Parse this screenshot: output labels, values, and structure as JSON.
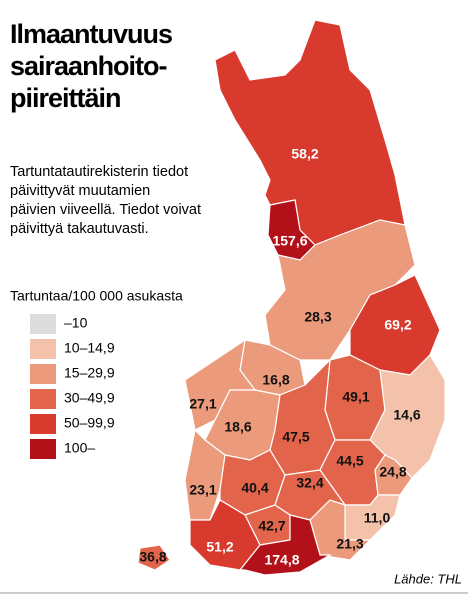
{
  "header": {
    "title_lines": [
      "Ilmaantuvuus",
      "sairaanhoito-",
      "piireittäin"
    ],
    "description_lines": [
      "Tartuntatautirekisterin tiedot",
      "päivittyvät muutamien",
      "päivien viiveellä. Tiedot voivat",
      "päivittyä takautuvasti."
    ]
  },
  "legend": {
    "title": "Tartuntaa/100 000 asukasta",
    "items": [
      {
        "label": "–10",
        "from": null,
        "color": "#dcdcdc"
      },
      {
        "label": "10–14,9",
        "from": 10,
        "color": "#f4c2aa"
      },
      {
        "label": "15–29,9",
        "from": 15,
        "color": "#eb9a7c"
      },
      {
        "label": "30–49,9",
        "from": 30,
        "color": "#e2654b"
      },
      {
        "label": "50–99,9",
        "from": 50,
        "color": "#d83a2d"
      },
      {
        "label": "100–",
        "from": 100,
        "color": "#b3111a"
      }
    ]
  },
  "regions": [
    {
      "value": 58.2,
      "label": "58,2"
    },
    {
      "value": 157.6,
      "label": "157,6"
    },
    {
      "value": 28.3,
      "label": "28,3"
    },
    {
      "value": 69.2,
      "label": "69,2"
    },
    {
      "value": 16.8,
      "label": "16,8"
    },
    {
      "value": 27.1,
      "label": "27,1"
    },
    {
      "value": 18.6,
      "label": "18,6"
    },
    {
      "value": 49.1,
      "label": "49,1"
    },
    {
      "value": 47.5,
      "label": "47,5"
    },
    {
      "value": 14.6,
      "label": "14,6"
    },
    {
      "value": 23.1,
      "label": "23,1"
    },
    {
      "value": 40.4,
      "label": "40,4"
    },
    {
      "value": 44.5,
      "label": "44,5"
    },
    {
      "value": 24.8,
      "label": "24,8"
    },
    {
      "value": 32.4,
      "label": "32,4"
    },
    {
      "value": 42.7,
      "label": "42,7"
    },
    {
      "value": 11.0,
      "label": "11,0"
    },
    {
      "value": 21.3,
      "label": "21,3"
    },
    {
      "value": 51.2,
      "label": "51,2"
    },
    {
      "value": 174.8,
      "label": "174,8"
    },
    {
      "value": 36.8,
      "label": "36,8"
    }
  ],
  "source": "Lähde: THL"
}
